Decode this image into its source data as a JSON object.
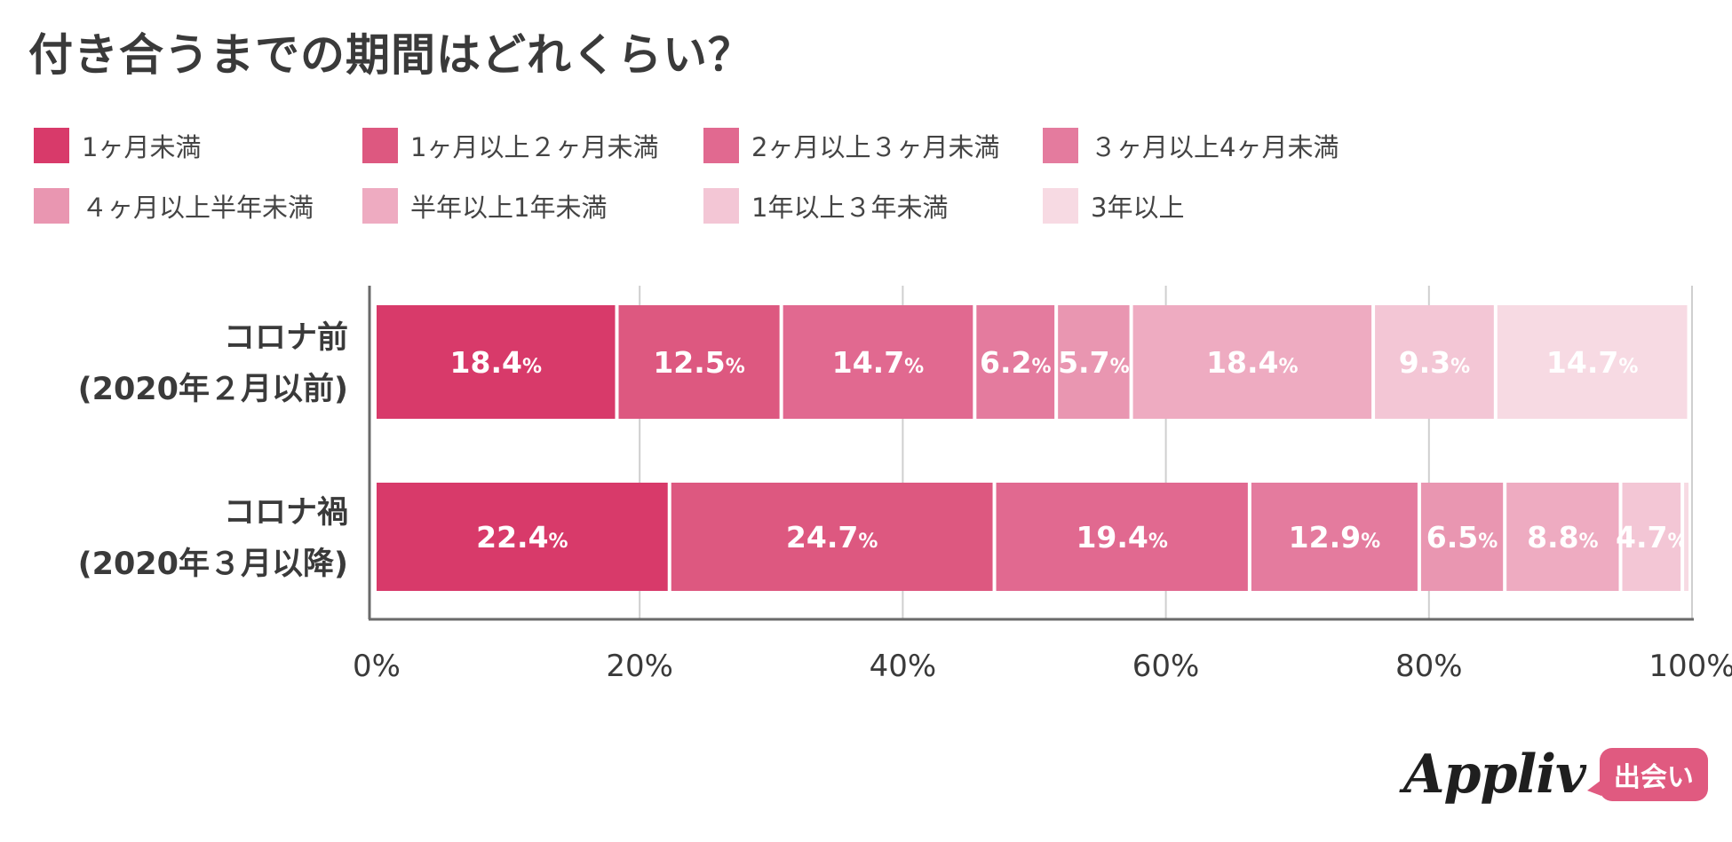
{
  "title": "付き合うまでの期間はどれくらい？",
  "colors": [
    "#d83a6a",
    "#dd5880",
    "#e16990",
    "#e47b9e",
    "#e996b1",
    "#eeabc1",
    "#f3c6d5",
    "#f7dae3"
  ],
  "chart_data": {
    "type": "bar",
    "orientation": "horizontal",
    "stacked": true,
    "percent": true,
    "categories": [
      "コロナ前\n(2020年２月以前)",
      "コロナ禍\n(2020年３月以降)"
    ],
    "series": [
      {
        "name": "1ヶ月未満",
        "values": [
          18.4,
          22.4
        ]
      },
      {
        "name": "1ヶ月以上２ヶ月未満",
        "values": [
          12.5,
          24.7
        ]
      },
      {
        "name": "2ヶ月以上３ヶ月未満",
        "values": [
          14.7,
          19.4
        ]
      },
      {
        "name": "３ヶ月以上4ヶ月未満",
        "values": [
          6.2,
          12.9
        ]
      },
      {
        "name": "４ヶ月以上半年未満",
        "values": [
          5.7,
          6.5
        ]
      },
      {
        "name": "半年以上1年未満",
        "values": [
          18.4,
          8.8
        ]
      },
      {
        "name": "1年以上３年未満",
        "values": [
          9.3,
          4.7
        ]
      },
      {
        "name": "3年以上",
        "values": [
          14.7,
          0.6
        ]
      }
    ],
    "data_labels": [
      [
        "18.4",
        "12.5",
        "14.7",
        "6.2",
        "5.7",
        "18.4",
        "9.3",
        "14.7"
      ],
      [
        "22.4",
        "24.7",
        "19.4",
        "12.9",
        "6.5",
        "8.8",
        "4.7",
        ""
      ]
    ],
    "label_unit": "%",
    "xticks": [
      "0%",
      "20%",
      "40%",
      "60%",
      "80%",
      "100%"
    ],
    "xlim": [
      0,
      100
    ],
    "grid": true,
    "legend_position": "top"
  },
  "brand": {
    "logo": "Appliv",
    "badge": "出会い"
  }
}
